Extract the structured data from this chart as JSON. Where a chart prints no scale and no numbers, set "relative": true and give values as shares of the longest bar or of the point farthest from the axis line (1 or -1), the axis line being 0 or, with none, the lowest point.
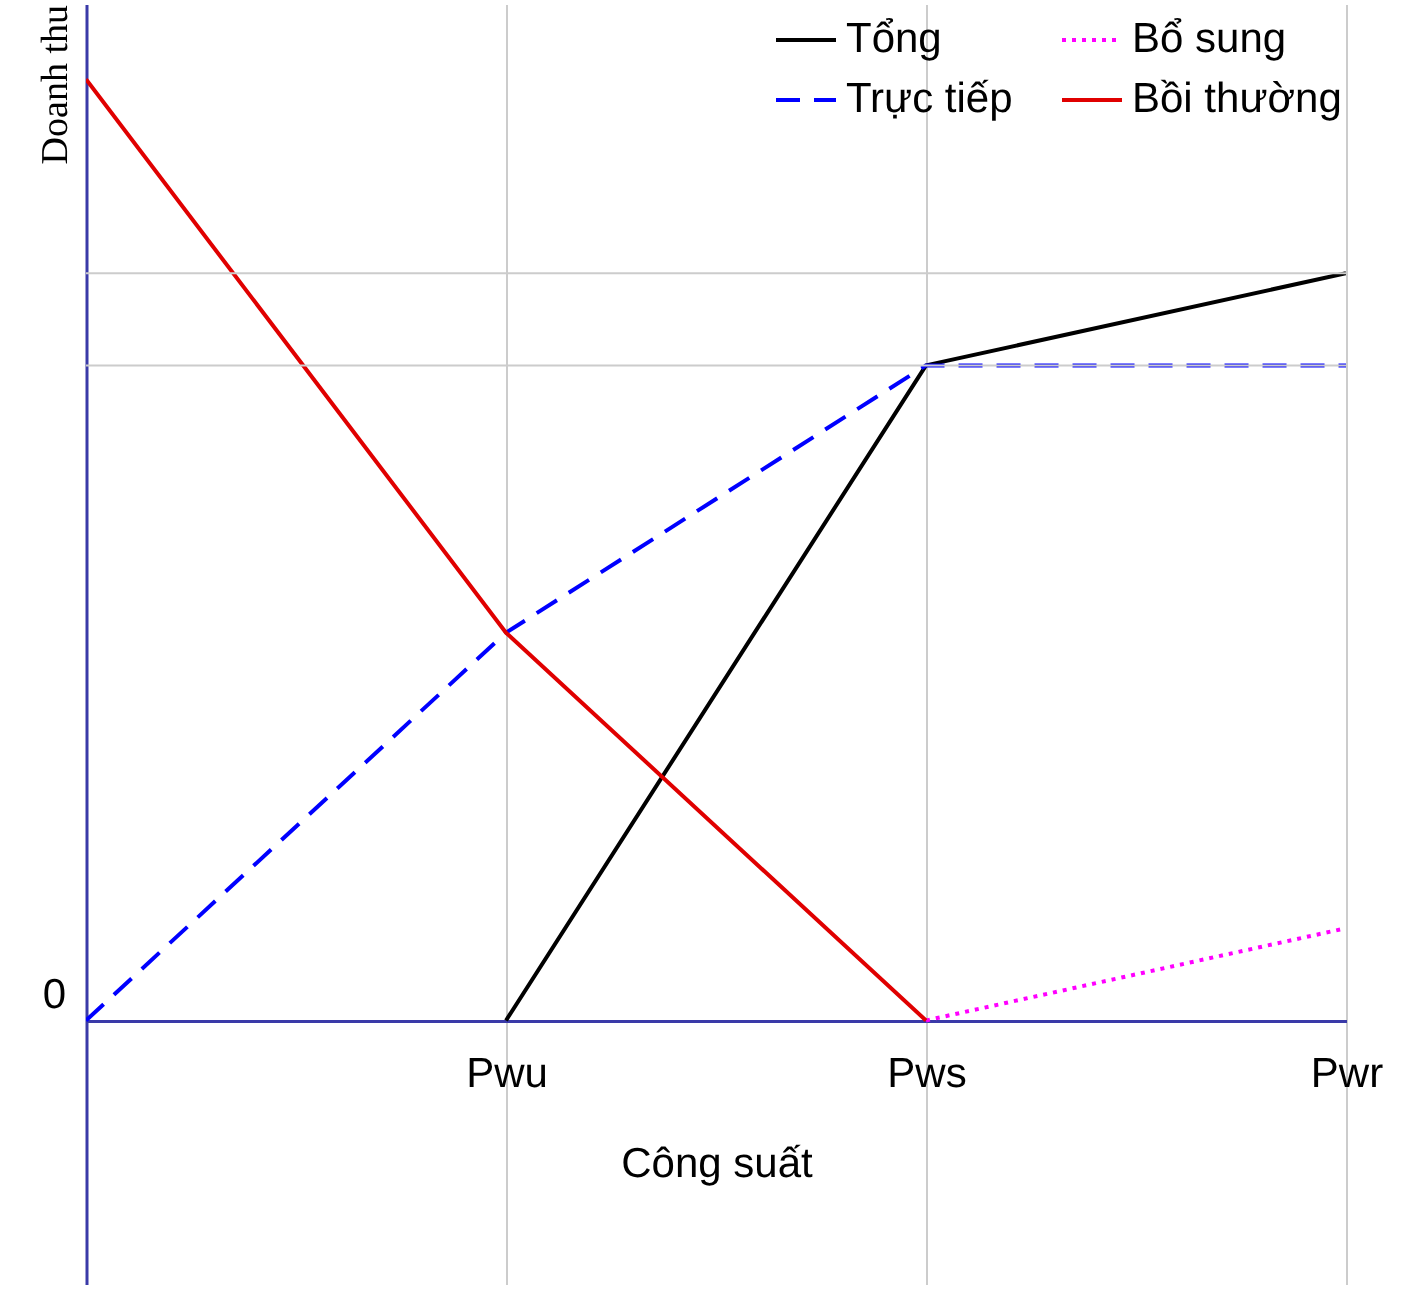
{
  "chart_data": {
    "type": "line",
    "relative": true,
    "xlabel": "Công suất",
    "ylabel": "Doanh thu",
    "categories": [
      null,
      "Pwu",
      "Pws",
      "Pwr"
    ],
    "series": [
      {
        "name": "Tổng",
        "color": "#000000",
        "line_style": "solid",
        "values": [
          null,
          0,
          0.696,
          0.794
        ]
      },
      {
        "name": "Trực tiếp",
        "color": "#0000ff",
        "line_style": "dashed",
        "values": [
          0,
          0.412,
          0.696,
          0.696
        ]
      },
      {
        "name": "Bổ sung",
        "color": "#ff00ff",
        "line_style": "dotted",
        "values": [
          null,
          null,
          0,
          0.098
        ]
      },
      {
        "name": "Bồi thường",
        "color": "#e00000",
        "line_style": "solid",
        "values": [
          1,
          0.412,
          0,
          null
        ]
      }
    ],
    "ref_lines": [
      {
        "axis": "y",
        "value": 0.696,
        "color": "#cccccc"
      },
      {
        "axis": "y",
        "value": 0.794,
        "color": "#cccccc"
      }
    ],
    "annotations": [
      "0"
    ],
    "grid": "x",
    "legend": "top right"
  }
}
